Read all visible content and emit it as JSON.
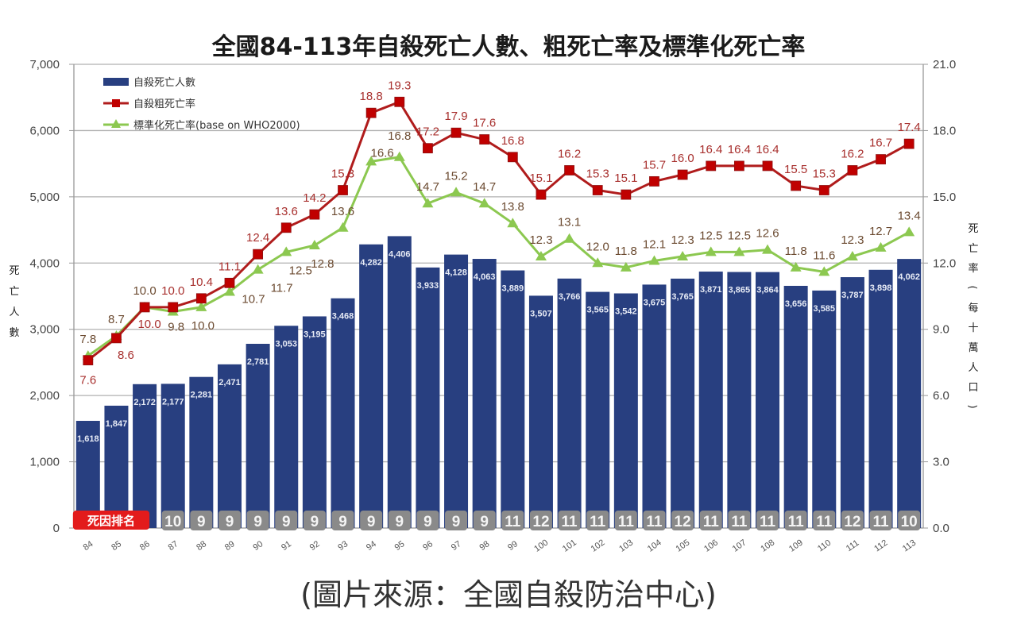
{
  "page": {
    "title": "全國84-113年自殺死亡人數、粗死亡率及標準化死亡率",
    "source_caption": "(圖片來源：全國自殺防治中心)"
  },
  "chart_data": {
    "type": "bar",
    "title": "全國84-113年自殺死亡人數、粗死亡率及標準化死亡率",
    "xlabel": "",
    "ylabel": "死亡人數",
    "y2label": "死亡率(每十萬人口)",
    "ylim": [
      0,
      7000
    ],
    "y2lim": [
      0,
      21.0
    ],
    "yticks": [
      "0",
      "1,000",
      "2,000",
      "3,000",
      "4,000",
      "5,000",
      "6,000",
      "7,000"
    ],
    "ytick_values": [
      0,
      1000,
      2000,
      3000,
      4000,
      5000,
      6000,
      7000
    ],
    "y2ticks": [
      "0.0",
      "3.0",
      "6.0",
      "9.0",
      "12.0",
      "15.0",
      "18.0",
      "21.0"
    ],
    "y2tick_values": [
      0,
      3,
      6,
      9,
      12,
      15,
      18,
      21
    ],
    "grid": true,
    "legend_position": "top-left",
    "categories": [
      "84",
      "85",
      "86",
      "87",
      "88",
      "89",
      "90",
      "91",
      "92",
      "93",
      "94",
      "95",
      "96",
      "97",
      "98",
      "99",
      "100",
      "101",
      "102",
      "103",
      "104",
      "105",
      "106",
      "107",
      "108",
      "109",
      "110",
      "111",
      "112",
      "113"
    ],
    "series": [
      {
        "name": "自殺死亡人數",
        "type": "bar",
        "axis": "left",
        "color": "#283f80",
        "values": [
          1618,
          1847,
          2172,
          2177,
          2281,
          2471,
          2781,
          3053,
          3195,
          3468,
          4282,
          4406,
          3933,
          4128,
          4063,
          3889,
          3507,
          3766,
          3565,
          3542,
          3675,
          3765,
          3871,
          3865,
          3864,
          3656,
          3585,
          3787,
          3898,
          4062
        ],
        "labels": [
          "1,618",
          "1,847",
          "2,172",
          "2,177",
          "2,281",
          "2,471",
          "2,781",
          "3,053",
          "3,195",
          "3,468",
          "4,282",
          "4,406",
          "3,933",
          "4,128",
          "4,063",
          "3,889",
          "3,507",
          "3,766",
          "3,565",
          "3,542",
          "3,675",
          "3,765",
          "3,871",
          "3,865",
          "3,864",
          "3,656",
          "3,585",
          "3,787",
          "3,898",
          "4,062"
        ]
      },
      {
        "name": "自殺粗死亡率",
        "type": "line",
        "marker": "square",
        "axis": "right",
        "color": "#b01c1c",
        "values": [
          7.6,
          8.6,
          10.0,
          10.0,
          10.4,
          11.1,
          12.4,
          13.6,
          14.2,
          15.3,
          18.8,
          19.3,
          17.2,
          17.9,
          17.6,
          16.8,
          15.1,
          16.2,
          15.3,
          15.1,
          15.7,
          16.0,
          16.4,
          16.4,
          16.4,
          15.5,
          15.3,
          16.2,
          16.7,
          17.4
        ]
      },
      {
        "name": "標準化死亡率(base on WHO2000)",
        "type": "line",
        "marker": "triangle",
        "axis": "right",
        "color": "#8cc850",
        "values": [
          7.8,
          8.7,
          10.0,
          9.8,
          10.0,
          10.7,
          11.7,
          12.5,
          12.8,
          13.6,
          16.6,
          16.8,
          14.7,
          15.2,
          14.7,
          13.8,
          12.3,
          13.1,
          12.0,
          11.8,
          12.1,
          12.3,
          12.5,
          12.5,
          12.6,
          11.8,
          11.6,
          12.3,
          12.7,
          13.4
        ]
      }
    ],
    "cause_of_death_rank": {
      "label": "死因排名",
      "values": [
        null,
        null,
        null,
        "10",
        "9",
        "9",
        "9",
        "9",
        "9",
        "9",
        "9",
        "9",
        "9",
        "9",
        "9",
        "11",
        "12",
        "11",
        "11",
        "11",
        "11",
        "12",
        "11",
        "11",
        "11",
        "11",
        "11",
        "12",
        "11",
        "10"
      ]
    }
  }
}
